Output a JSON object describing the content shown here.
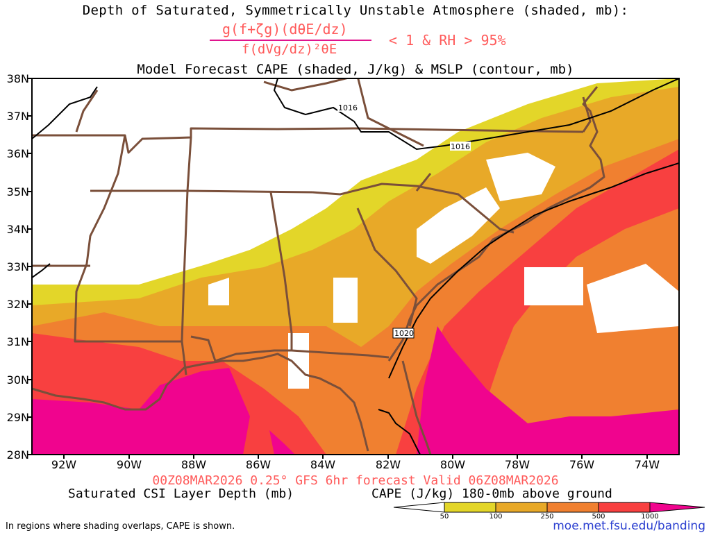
{
  "titles": {
    "line1": "Depth of Saturated, Symmetrically Unstable Atmosphere (shaded, mb):",
    "formula_numerator": "g(f+ζg)(dθE/dz)",
    "formula_denominator": "f(dVg/dz)²θE",
    "formula_condition": "< 1 & RH > 95%",
    "line3": "Model Forecast CAPE (shaded, J/kg) & MSLP (contour, mb)"
  },
  "map": {
    "projection": "lat-lon",
    "lat_range": [
      28,
      38
    ],
    "lon_range": [
      -93,
      -73
    ],
    "lat_ticks": [
      "38N",
      "37N",
      "36N",
      "35N",
      "34N",
      "33N",
      "32N",
      "31N",
      "30N",
      "29N",
      "28N"
    ],
    "lon_ticks": [
      "92W",
      "90W",
      "88W",
      "86W",
      "84W",
      "82W",
      "80W",
      "78W",
      "76W",
      "74W"
    ],
    "isobar_labels": [
      "1016",
      "1016",
      "1020"
    ],
    "boundary_color": "#7a4f3a",
    "isobar_color": "#000000"
  },
  "run_info": "00Z08MAR2026 0.25° GFS 6hr forecast Valid 06Z08MAR2026",
  "legend": {
    "left_title": "Saturated CSI Layer Depth (mb)",
    "right_title": "CAPE (J/kg) 180-0mb above ground",
    "colorbar_labels": [
      "50",
      "100",
      "250",
      "500",
      "1000"
    ],
    "colorbar_colors": [
      "#ffffff",
      "#e3d629",
      "#e8a928",
      "#f08030",
      "#f84040",
      "#f0048e"
    ]
  },
  "footnote": "In regions where shading overlaps, CAPE is shown.",
  "credit": "moe.met.fsu.edu/banding"
}
